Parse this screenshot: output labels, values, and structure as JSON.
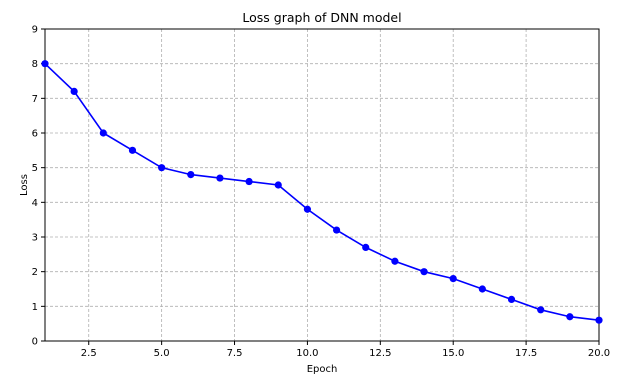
{
  "chart_data": {
    "type": "line",
    "title": "Loss graph of DNN model",
    "xlabel": "Epoch",
    "ylabel": "Loss",
    "xlim": [
      1,
      20
    ],
    "ylim": [
      0,
      9
    ],
    "x_ticks": [
      2.5,
      5.0,
      7.5,
      10.0,
      12.5,
      15.0,
      17.5,
      20.0
    ],
    "x_tick_labels": [
      "2.5",
      "5.0",
      "7.5",
      "10.0",
      "12.5",
      "15.0",
      "17.5",
      "20.0"
    ],
    "y_ticks": [
      0,
      1,
      2,
      3,
      4,
      5,
      6,
      7,
      8,
      9
    ],
    "y_tick_labels": [
      "0",
      "1",
      "2",
      "3",
      "4",
      "5",
      "6",
      "7",
      "8",
      "9"
    ],
    "grid": true,
    "legend": "none",
    "series": [
      {
        "color": "#0000ff",
        "marker": "circle",
        "x": [
          1,
          2,
          3,
          4,
          5,
          6,
          7,
          8,
          9,
          10,
          11,
          12,
          13,
          14,
          15,
          16,
          17,
          18,
          19,
          20
        ],
        "y": [
          8.0,
          7.2,
          6.0,
          5.5,
          5.0,
          4.8,
          4.7,
          4.6,
          4.5,
          3.8,
          3.2,
          2.7,
          2.3,
          2.0,
          1.8,
          1.5,
          1.2,
          0.9,
          0.7,
          0.6
        ]
      }
    ]
  }
}
